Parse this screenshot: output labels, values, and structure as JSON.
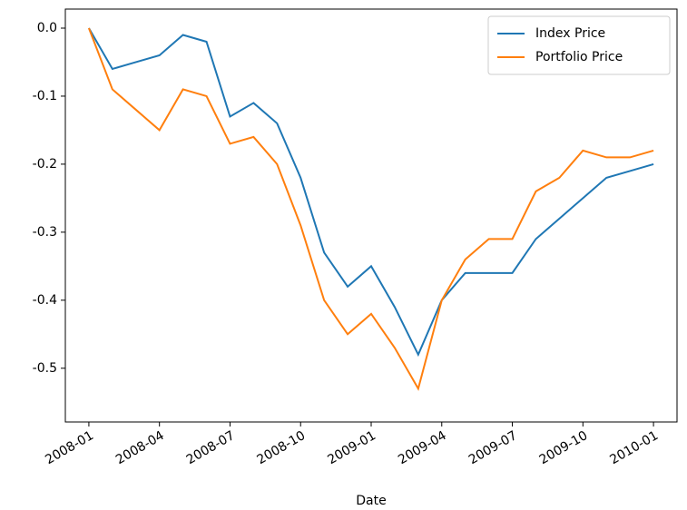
{
  "chart_data": {
    "type": "line",
    "xlabel": "Date",
    "x": [
      "2008-01",
      "2008-02",
      "2008-03",
      "2008-04",
      "2008-05",
      "2008-06",
      "2008-07",
      "2008-08",
      "2008-09",
      "2008-10",
      "2008-11",
      "2008-12",
      "2009-01",
      "2009-02",
      "2009-03",
      "2009-04",
      "2009-05",
      "2009-06",
      "2009-07",
      "2009-08",
      "2009-09",
      "2009-10",
      "2009-11",
      "2009-12",
      "2010-01"
    ],
    "series": [
      {
        "name": "Index Price",
        "color": "#1f77b4",
        "values": [
          0.0,
          -0.06,
          -0.05,
          -0.04,
          -0.01,
          -0.02,
          -0.13,
          -0.11,
          -0.14,
          -0.22,
          -0.33,
          -0.38,
          -0.35,
          -0.41,
          -0.48,
          -0.4,
          -0.36,
          -0.36,
          -0.36,
          -0.31,
          -0.28,
          -0.25,
          -0.22,
          -0.21,
          -0.2
        ]
      },
      {
        "name": "Portfolio Price",
        "color": "#ff7f0e",
        "values": [
          0.0,
          -0.09,
          -0.12,
          -0.15,
          -0.09,
          -0.1,
          -0.17,
          -0.16,
          -0.2,
          -0.29,
          -0.4,
          -0.45,
          -0.42,
          -0.47,
          -0.53,
          -0.4,
          -0.34,
          -0.31,
          -0.31,
          -0.24,
          -0.22,
          -0.18,
          -0.19,
          -0.19,
          -0.18
        ]
      }
    ],
    "xlim": [
      "2007-12",
      "2010-02"
    ],
    "xticks": [
      "2008-01",
      "2008-04",
      "2008-07",
      "2008-10",
      "2009-01",
      "2009-04",
      "2009-07",
      "2009-10",
      "2010-01"
    ],
    "ylim": [
      -0.579,
      0.028
    ],
    "yticks": [
      {
        "value": 0.0,
        "label": "0.0"
      },
      {
        "value": -0.1,
        "label": "-0.1"
      },
      {
        "value": -0.2,
        "label": "-0.2"
      },
      {
        "value": -0.3,
        "label": "-0.3"
      },
      {
        "value": -0.4,
        "label": "-0.4"
      },
      {
        "value": -0.5,
        "label": "-0.5"
      }
    ],
    "legend": "upper right",
    "grid": false
  }
}
